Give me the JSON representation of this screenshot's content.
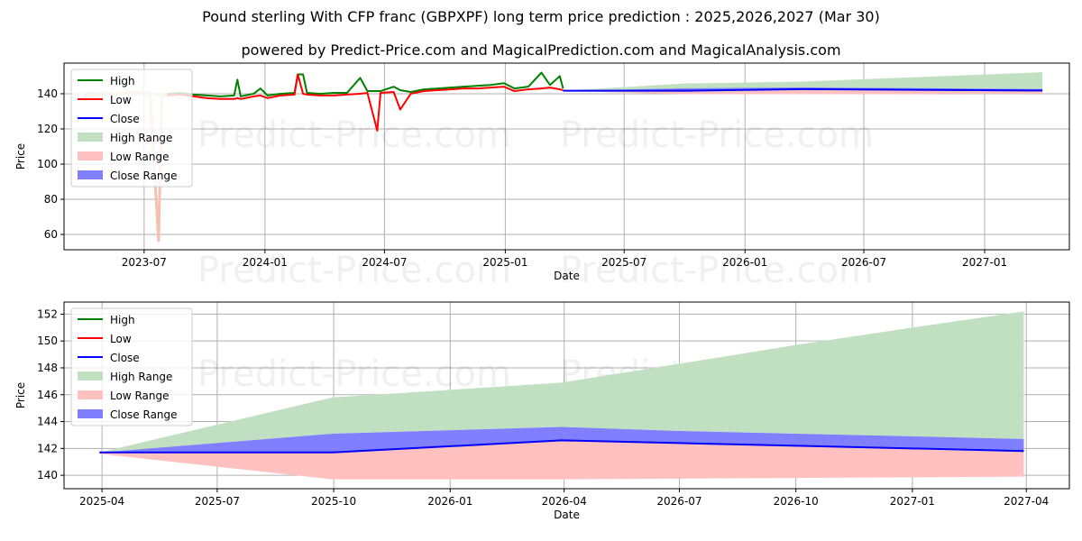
{
  "title": "Pound sterling With CFP franc (GBPXPF) long term price prediction : 2025,2026,2027 (Mar 30)",
  "subtitle": "powered by Predict-Price.com and MagicalPrediction.com and MagicalAnalysis.com",
  "watermark": "Predict-Price.com",
  "colors": {
    "high": "#008000",
    "low": "#ff0000",
    "close": "#0000ff",
    "high_range": "#c1e0c1",
    "low_range": "#ffc0c0",
    "close_range": "#8080ff"
  },
  "legend": [
    "High",
    "Low",
    "Close",
    "High Range",
    "Low Range",
    "Close Range"
  ],
  "chart_data": [
    {
      "type": "line",
      "xlabel": "Date",
      "ylabel": "Price",
      "ylim": [
        51.3,
        157.4
      ],
      "xlim": [
        "2023-03-01",
        "2027-05-10"
      ],
      "yticks": [
        60,
        80,
        100,
        120,
        140
      ],
      "xticks": [
        "2023-07",
        "2024-01",
        "2024-07",
        "2025-01",
        "2025-07",
        "2026-01",
        "2026-07",
        "2027-01"
      ],
      "legend_position": "top-left",
      "history_faded": [
        [
          "2023-04-01",
          139,
          141
        ],
        [
          "2023-04-20",
          139.5,
          140.5
        ],
        [
          "2023-05-10",
          140,
          141
        ],
        [
          "2023-05-25",
          140,
          148
        ],
        [
          "2023-06-05",
          140.5,
          141.5
        ],
        [
          "2023-06-25",
          140,
          141
        ],
        [
          "2023-07-10",
          139.5,
          140.5
        ],
        [
          "2023-07-23",
          56.5,
          139
        ],
        [
          "2023-07-28",
          139,
          140
        ],
        [
          "2023-08-05",
          139,
          140
        ]
      ],
      "history": [
        [
          "2023-08-05",
          139,
          140
        ],
        [
          "2023-08-25",
          139.5,
          140.5
        ],
        [
          "2023-09-15",
          138.5,
          139.5
        ],
        [
          "2023-10-05",
          137.5,
          139
        ],
        [
          "2023-10-25",
          137,
          138.5
        ],
        [
          "2023-11-15",
          137,
          139
        ],
        [
          "2023-11-20",
          137.5,
          148
        ],
        [
          "2023-11-25",
          137,
          138.5
        ],
        [
          "2023-12-15",
          138.5,
          140
        ],
        [
          "2023-12-25",
          139,
          143
        ],
        [
          "2024-01-05",
          137.5,
          139
        ],
        [
          "2024-01-25",
          139,
          140
        ],
        [
          "2024-02-15",
          139.5,
          140.5
        ],
        [
          "2024-02-20",
          151,
          151
        ],
        [
          "2024-02-28",
          140,
          151
        ],
        [
          "2024-03-05",
          139.5,
          140.5
        ],
        [
          "2024-03-25",
          139,
          140
        ],
        [
          "2024-04-15",
          139,
          140.5
        ],
        [
          "2024-05-05",
          139.5,
          140.5
        ],
        [
          "2024-05-25",
          140,
          149
        ],
        [
          "2024-06-05",
          140.5,
          141.5
        ],
        [
          "2024-06-20",
          119,
          141.5
        ],
        [
          "2024-06-25",
          140.5,
          141.5
        ],
        [
          "2024-07-15",
          141,
          144
        ],
        [
          "2024-07-25",
          131,
          142
        ],
        [
          "2024-08-10",
          140,
          141
        ],
        [
          "2024-08-30",
          141.5,
          142.5
        ],
        [
          "2024-09-20",
          142,
          143
        ],
        [
          "2024-10-10",
          142.5,
          143.5
        ],
        [
          "2024-10-30",
          143,
          144
        ],
        [
          "2024-11-20",
          143,
          144.5
        ],
        [
          "2024-12-10",
          143.5,
          145
        ],
        [
          "2024-12-30",
          144,
          146
        ],
        [
          "2025-01-15",
          141.5,
          143
        ],
        [
          "2025-02-05",
          142.5,
          144
        ],
        [
          "2025-02-25",
          143,
          152
        ],
        [
          "2025-03-10",
          143.5,
          145
        ],
        [
          "2025-03-25",
          142.5,
          150
        ],
        [
          "2025-03-30",
          142,
          143
        ]
      ],
      "forecast": {
        "dates": [
          "2025-03-30",
          "2025-09-30",
          "2026-03-30",
          "2027-03-30"
        ],
        "close": [
          141.7,
          141.7,
          142.6,
          141.8
        ],
        "close_upper": [
          141.7,
          143.1,
          143.6,
          142.7
        ],
        "high": [
          141.7,
          145.8,
          146.9,
          152.2
        ],
        "low": [
          141.6,
          139.7,
          139.7,
          139.9
        ]
      }
    },
    {
      "type": "area",
      "xlabel": "Date",
      "ylabel": "Price",
      "ylim": [
        139.0,
        152.9
      ],
      "xlim": [
        "2025-03-02",
        "2027-05-05"
      ],
      "yticks": [
        140,
        142,
        144,
        146,
        148,
        150,
        152
      ],
      "xticks": [
        "2025-04",
        "2025-07",
        "2025-10",
        "2026-01",
        "2026-04",
        "2026-07",
        "2026-10",
        "2027-01",
        "2027-04"
      ],
      "legend_position": "top-left",
      "forecast": {
        "dates": [
          "2025-03-30",
          "2025-09-30",
          "2026-03-30",
          "2026-07-01",
          "2026-10-01",
          "2027-01-01",
          "2027-03-30"
        ],
        "close": [
          141.7,
          141.7,
          142.6,
          142.4,
          142.2,
          142.0,
          141.8
        ],
        "close_upper": [
          141.7,
          143.1,
          143.6,
          143.3,
          143.1,
          142.9,
          142.7
        ],
        "high": [
          141.7,
          145.8,
          146.9,
          148.3,
          149.7,
          151.0,
          152.2
        ],
        "low": [
          141.6,
          139.7,
          139.7,
          139.75,
          139.8,
          139.85,
          139.9
        ]
      }
    }
  ]
}
